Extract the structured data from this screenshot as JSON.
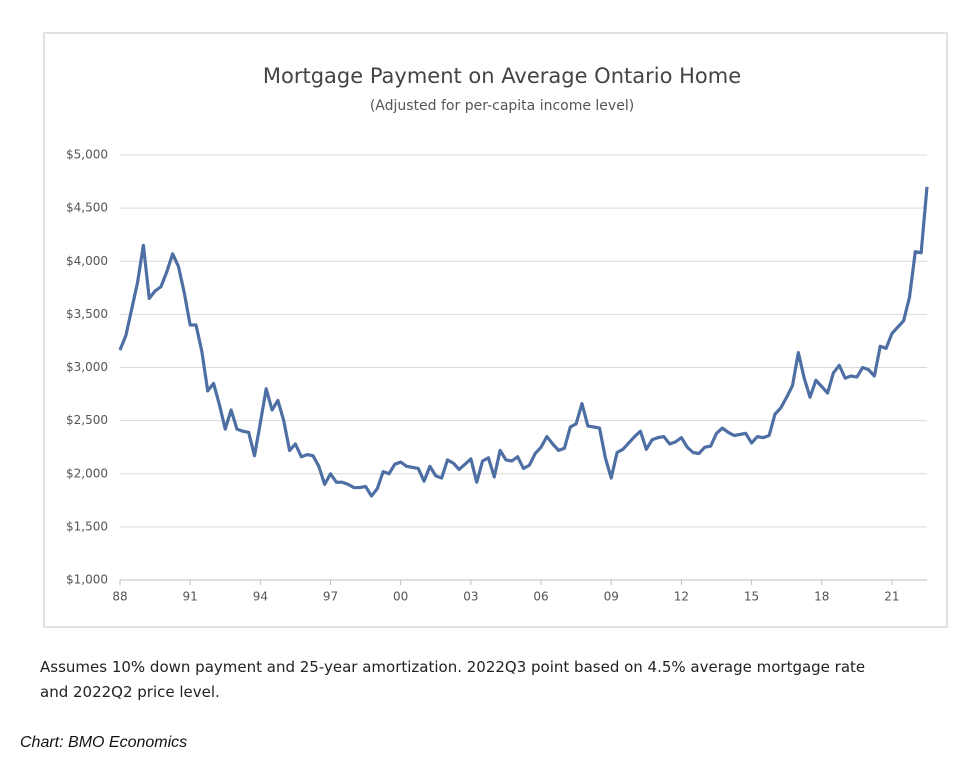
{
  "chart_data": {
    "type": "line",
    "title": "Mortgage Payment on Average Ontario Home",
    "subtitle": "(Adjusted for per-capita income level)",
    "note": "Assumes 10% down payment and 25-year amortization. 2022Q3 point based on 4.5% average mortgage rate and 2022Q2 price level.",
    "source": "Chart: BMO Economics",
    "x": [
      1988,
      1988.25,
      1988.5,
      1988.75,
      1989,
      1989.25,
      1989.5,
      1989.75,
      1990,
      1990.25,
      1990.5,
      1990.75,
      1991,
      1991.25,
      1991.5,
      1991.75,
      1992,
      1992.25,
      1992.5,
      1992.75,
      1993,
      1993.25,
      1993.5,
      1993.75,
      1994,
      1994.25,
      1994.5,
      1994.75,
      1995,
      1995.25,
      1995.5,
      1995.75,
      1996,
      1996.25,
      1996.5,
      1996.75,
      1997,
      1997.25,
      1997.5,
      1997.75,
      1998,
      1998.25,
      1998.5,
      1998.75,
      1999,
      1999.25,
      1999.5,
      1999.75,
      2000,
      2000.25,
      2000.5,
      2000.75,
      2001,
      2001.25,
      2001.5,
      2001.75,
      2002,
      2002.25,
      2002.5,
      2002.75,
      2003,
      2003.25,
      2003.5,
      2003.75,
      2004,
      2004.25,
      2004.5,
      2004.75,
      2005,
      2005.25,
      2005.5,
      2005.75,
      2006,
      2006.25,
      2006.5,
      2006.75,
      2007,
      2007.25,
      2007.5,
      2007.75,
      2008,
      2008.25,
      2008.5,
      2008.75,
      2009,
      2009.25,
      2009.5,
      2009.75,
      2010,
      2010.25,
      2010.5,
      2010.75,
      2011,
      2011.25,
      2011.5,
      2011.75,
      2012,
      2012.25,
      2012.5,
      2012.75,
      2013,
      2013.25,
      2013.5,
      2013.75,
      2014,
      2014.25,
      2014.5,
      2014.75,
      2015,
      2015.25,
      2015.5,
      2015.75,
      2016,
      2016.25,
      2016.5,
      2016.75,
      2017,
      2017.25,
      2017.5,
      2017.75,
      2018,
      2018.25,
      2018.5,
      2018.75,
      2019,
      2019.25,
      2019.5,
      2019.75,
      2020,
      2020.25,
      2020.5,
      2020.75,
      2021,
      2021.25,
      2021.5,
      2021.75,
      2022,
      2022.25,
      2022.5
    ],
    "series": [
      {
        "name": "Mortgage Payment",
        "color": "#4e6fa3",
        "values": [
          3165,
          3300,
          3550,
          3800,
          4150,
          3650,
          3720,
          3760,
          3900,
          4070,
          3950,
          3700,
          3400,
          3400,
          3150,
          2780,
          2850,
          2650,
          2420,
          2600,
          2420,
          2400,
          2390,
          2170,
          2480,
          2800,
          2600,
          2690,
          2500,
          2220,
          2280,
          2160,
          2180,
          2170,
          2070,
          1900,
          2000,
          1920,
          1920,
          1900,
          1870,
          1870,
          1880,
          1790,
          1860,
          2020,
          2000,
          2090,
          2110,
          2070,
          2060,
          2050,
          1930,
          2070,
          1980,
          1960,
          2130,
          2100,
          2040,
          2090,
          2140,
          1920,
          2120,
          2150,
          1970,
          2220,
          2130,
          2120,
          2160,
          2050,
          2080,
          2190,
          2250,
          2350,
          2280,
          2220,
          2240,
          2440,
          2470,
          2660,
          2450,
          2440,
          2430,
          2150,
          1960,
          2200,
          2230,
          2290,
          2350,
          2400,
          2230,
          2320,
          2340,
          2350,
          2280,
          2300,
          2340,
          2250,
          2200,
          2190,
          2250,
          2260,
          2380,
          2430,
          2390,
          2360,
          2370,
          2380,
          2290,
          2350,
          2340,
          2360,
          2560,
          2620,
          2720,
          2830,
          3140,
          2900,
          2720,
          2880,
          2820,
          2760,
          2950,
          3020,
          2900,
          2920,
          2910,
          3000,
          2980,
          2920,
          3200,
          3180,
          3320,
          3380,
          3440,
          3660,
          4090,
          4080,
          4700
        ]
      }
    ],
    "xlim": [
      1988,
      2022.5
    ],
    "xticks": [
      {
        "value": 1988,
        "label": "88"
      },
      {
        "value": 1991,
        "label": "91"
      },
      {
        "value": 1994,
        "label": "94"
      },
      {
        "value": 1997,
        "label": "97"
      },
      {
        "value": 2000,
        "label": "00"
      },
      {
        "value": 2003,
        "label": "03"
      },
      {
        "value": 2006,
        "label": "06"
      },
      {
        "value": 2009,
        "label": "09"
      },
      {
        "value": 2012,
        "label": "12"
      },
      {
        "value": 2015,
        "label": "15"
      },
      {
        "value": 2018,
        "label": "18"
      },
      {
        "value": 2021,
        "label": "21"
      }
    ],
    "ylim": [
      1000,
      5000
    ],
    "yticks": [
      {
        "value": 1000,
        "label": "$1,000"
      },
      {
        "value": 1500,
        "label": "$1,500"
      },
      {
        "value": 2000,
        "label": "$2,000"
      },
      {
        "value": 2500,
        "label": "$2,500"
      },
      {
        "value": 3000,
        "label": "$3,000"
      },
      {
        "value": 3500,
        "label": "$3,500"
      },
      {
        "value": 4000,
        "label": "$4,000"
      },
      {
        "value": 4500,
        "label": "$4,500"
      },
      {
        "value": 5000,
        "label": "$5,000"
      }
    ],
    "grid": true
  }
}
